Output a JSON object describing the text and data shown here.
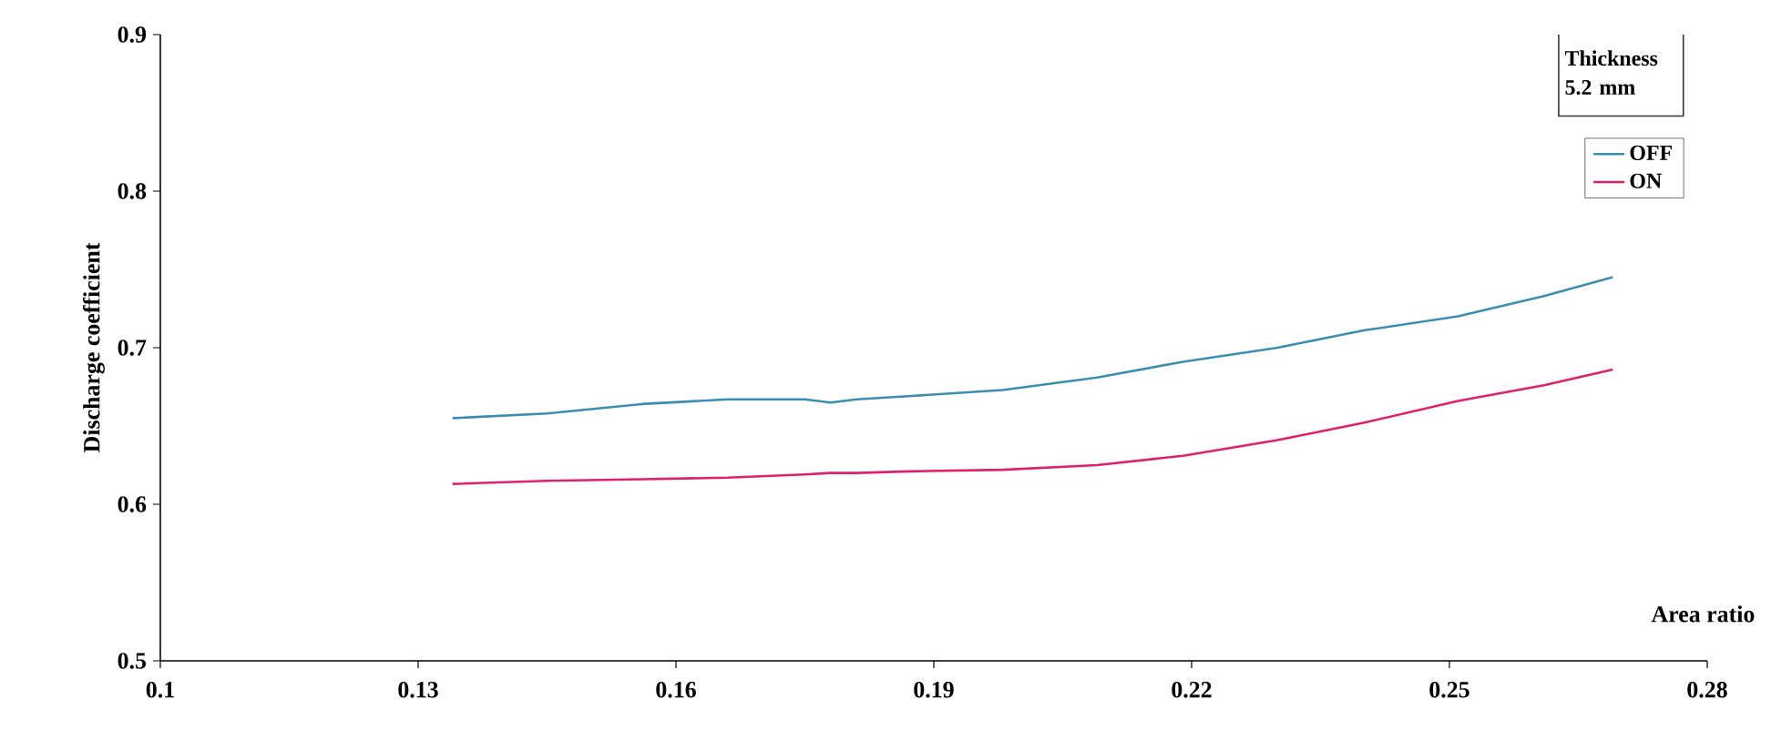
{
  "chart_data": {
    "type": "line",
    "xlabel": "Area ratio",
    "ylabel": "Discharge coefficient",
    "annotations": [
      "Thickness 5.2 mm"
    ],
    "xlim": [
      0.1,
      0.28
    ],
    "xticks": [
      0.1,
      0.13,
      0.16,
      0.19,
      0.22,
      0.25,
      0.28
    ],
    "ylim": [
      0.5,
      0.9
    ],
    "yticks": [
      0.5,
      0.6,
      0.7,
      0.8,
      0.9
    ],
    "grid": false,
    "legend": "top right",
    "marker": "none",
    "line_style": "solid",
    "x": [
      0.134,
      0.145,
      0.156,
      0.166,
      0.175,
      0.178,
      0.181,
      0.187,
      0.198,
      0.209,
      0.219,
      0.23,
      0.24,
      0.251,
      0.261,
      0.269
    ],
    "series": [
      {
        "name": "OFF",
        "color": "#3a8fb0",
        "values": [
          0.655,
          0.658,
          0.664,
          0.667,
          0.667,
          0.665,
          0.667,
          0.669,
          0.673,
          0.681,
          0.691,
          0.7,
          0.711,
          0.72,
          0.733,
          0.745
        ]
      },
      {
        "name": "ON",
        "color": "#e0206a",
        "values": [
          0.613,
          0.615,
          0.616,
          0.617,
          0.619,
          0.62,
          0.62,
          0.621,
          0.622,
          0.625,
          0.631,
          0.641,
          0.652,
          0.666,
          0.676,
          0.686
        ]
      }
    ]
  }
}
